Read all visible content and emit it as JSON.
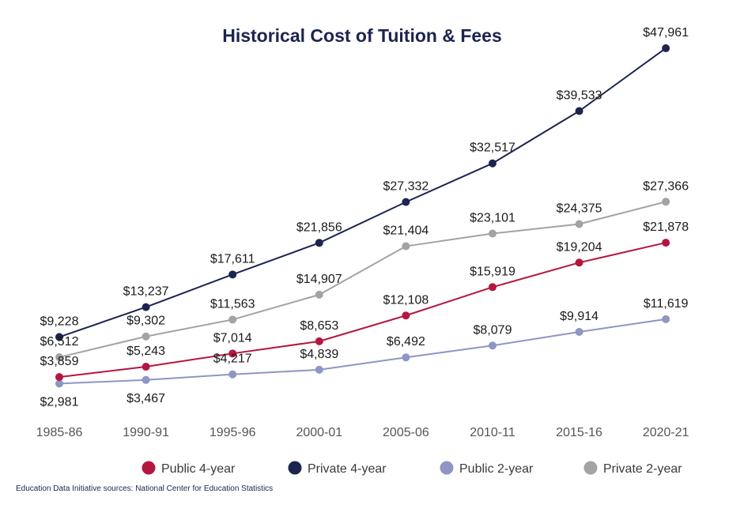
{
  "chart_data": {
    "type": "line",
    "title": "Historical Cost of Tuition & Fees",
    "xlabel": "",
    "ylabel": "",
    "categories": [
      "1985-86",
      "1990-91",
      "1995-96",
      "2000-01",
      "2005-06",
      "2010-11",
      "2015-16",
      "2020-21"
    ],
    "ylim": [
      0,
      50000
    ],
    "grid": false,
    "legend_position": "bottom",
    "series": [
      {
        "name": "Public 4-year",
        "color": "#b5163f",
        "values": [
          3859,
          5243,
          7014,
          8653,
          12108,
          15919,
          19204,
          21878
        ],
        "labels": [
          "$3,859",
          "$5,243",
          "$7,014",
          "$8,653",
          "$12,108",
          "$15,919",
          "$19,204",
          "$21,878"
        ]
      },
      {
        "name": "Private 4-year",
        "color": "#1c2450",
        "values": [
          9228,
          13237,
          17611,
          21856,
          27332,
          32517,
          39533,
          47961
        ],
        "labels": [
          "$9,228",
          "$13,237",
          "$17,611",
          "$21,856",
          "$27,332",
          "$32,517",
          "$39,533",
          "$47,961"
        ]
      },
      {
        "name": "Public 2-year",
        "color": "#8d96c4",
        "values": [
          2981,
          3467,
          4217,
          4839,
          6492,
          8079,
          9914,
          11619
        ],
        "labels": [
          "$2,981",
          "$3,467",
          "$4,217",
          "$4,839",
          "$6,492",
          "$8,079",
          "$9,914",
          "$11,619"
        ]
      },
      {
        "name": "Private 2-year",
        "color": "#a3a3a3",
        "values": [
          6512,
          9302,
          11563,
          14907,
          21404,
          23101,
          24375,
          27366
        ],
        "labels": [
          "$6,512",
          "$9,302",
          "$11,563",
          "$14,907",
          "$21,404",
          "$23,101",
          "$24,375",
          "$27,366"
        ]
      }
    ],
    "source": "Education Data Initiative sources: National Center for Education Statistics"
  }
}
